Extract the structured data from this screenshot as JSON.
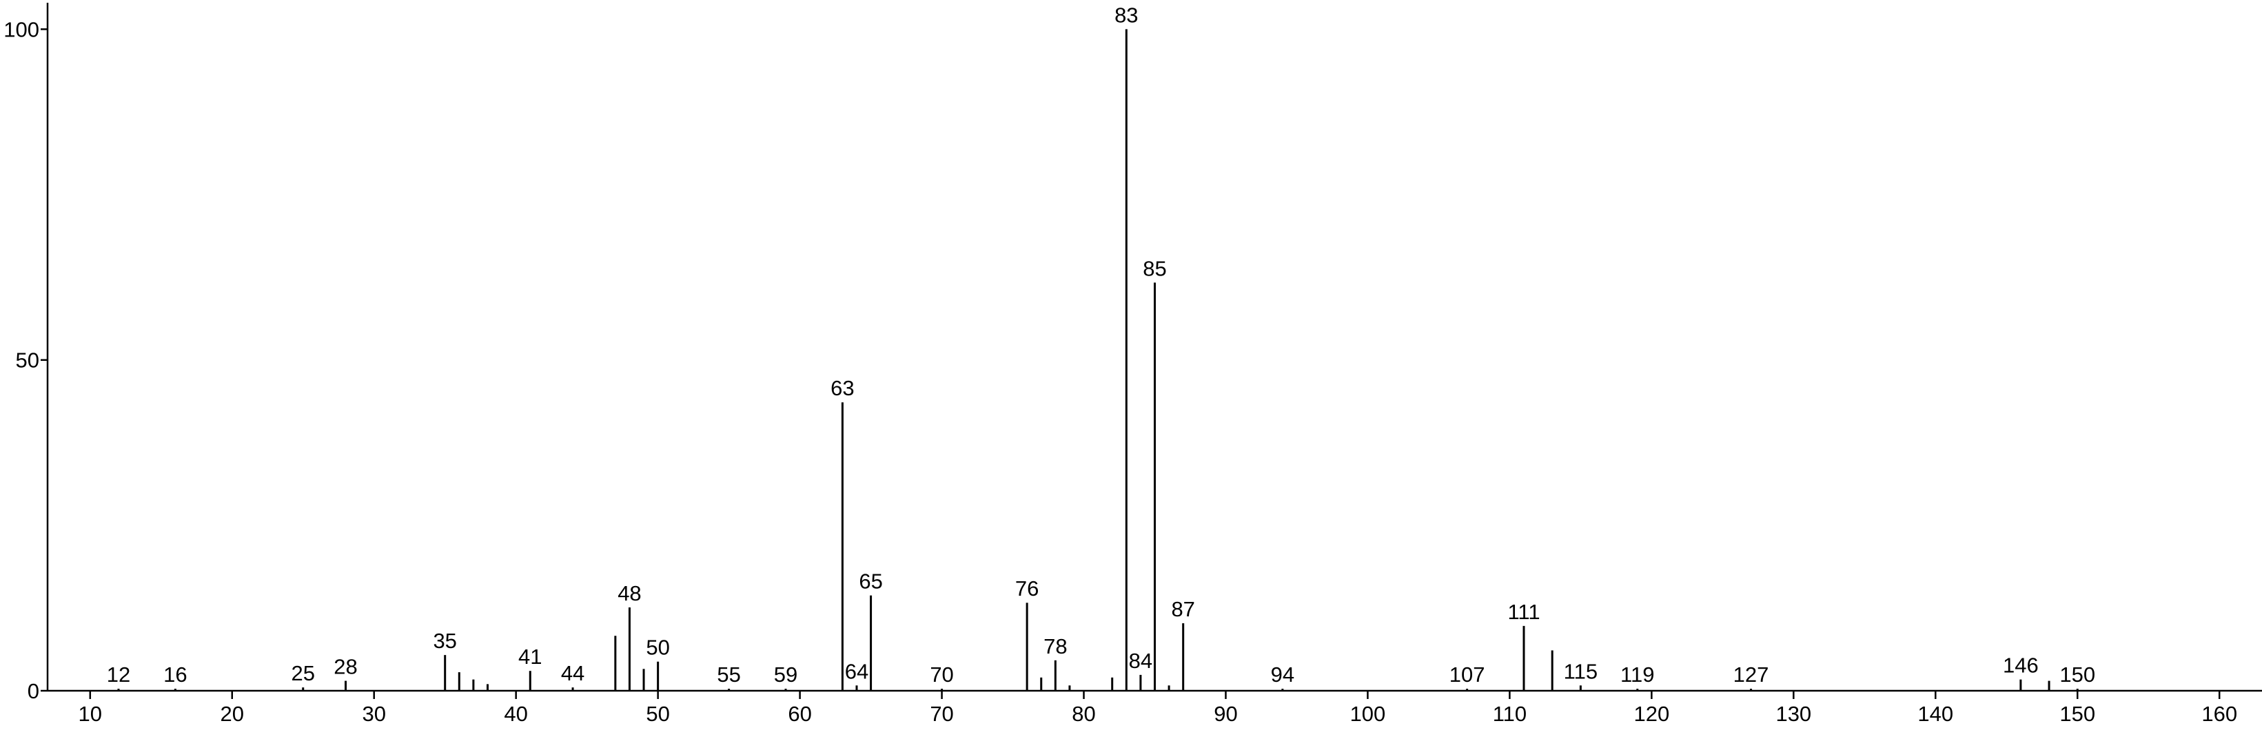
{
  "chart_data": {
    "type": "stem",
    "x": [
      12,
      16,
      25,
      28,
      35,
      36,
      37,
      38,
      41,
      44,
      47,
      48,
      49,
      50,
      55,
      59,
      63,
      64,
      65,
      70,
      76,
      77,
      78,
      79,
      82,
      83,
      84,
      85,
      86,
      87,
      94,
      107,
      111,
      113,
      115,
      119,
      127,
      146,
      148,
      150
    ],
    "values": [
      0.3,
      0.3,
      0.5,
      1.5,
      5.4,
      2.8,
      1.7,
      1,
      3,
      0.5,
      8.3,
      12.6,
      3.3,
      4.4,
      0.3,
      0.3,
      43.6,
      0.8,
      14.4,
      0.3,
      13.3,
      2,
      4.6,
      0.8,
      2,
      100,
      2.4,
      61.7,
      0.8,
      10.2,
      0.3,
      0.3,
      9.8,
      6.1,
      0.8,
      0.3,
      0.3,
      1.7,
      1.5,
      0.3
    ],
    "peak_labels": [
      12,
      16,
      25,
      28,
      35,
      41,
      44,
      48,
      50,
      55,
      59,
      63,
      64,
      65,
      70,
      76,
      78,
      83,
      84,
      85,
      87,
      94,
      107,
      111,
      115,
      119,
      127,
      146,
      150
    ],
    "color": "#000000",
    "xlim": [
      7,
      163
    ],
    "xticks": [
      10,
      20,
      30,
      40,
      50,
      60,
      70,
      80,
      90,
      100,
      110,
      120,
      130,
      140,
      150,
      160
    ],
    "ylim": [
      0,
      104
    ],
    "yticks": [
      0,
      50,
      100
    ]
  }
}
